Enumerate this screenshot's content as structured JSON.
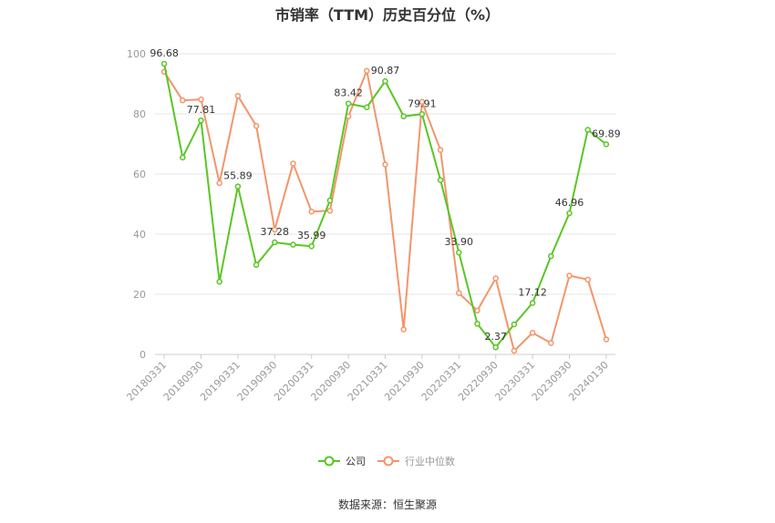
{
  "chart_data": {
    "type": "line",
    "title": "市销率（TTM）历史百分位（%）",
    "xlabel": "",
    "ylabel": "",
    "ylim": [
      0,
      100
    ],
    "yticks": [
      0,
      20,
      40,
      60,
      80,
      100
    ],
    "x": [
      "20180331",
      "20180630",
      "20180930",
      "20181231",
      "20190331",
      "20190630",
      "20190930",
      "20191231",
      "20200331",
      "20200630",
      "20200930",
      "20201231",
      "20210331",
      "20210630",
      "20210930",
      "20211231",
      "20220331",
      "20220630",
      "20220930",
      "20221231",
      "20230331",
      "20230630",
      "20230930",
      "20231231",
      "20240130"
    ],
    "xtick_labels": [
      "20180331",
      "20180930",
      "20190331",
      "20190930",
      "20200331",
      "20200930",
      "20210331",
      "20210930",
      "20220331",
      "20220930",
      "20230331",
      "20230930",
      "20240130"
    ],
    "series": [
      {
        "name": "公司",
        "color": "#5ac624",
        "values": [
          96.68,
          65.5,
          77.81,
          24.2,
          55.89,
          29.8,
          37.28,
          36.5,
          35.99,
          51.2,
          83.42,
          82.2,
          90.87,
          79.2,
          79.91,
          58.0,
          33.9,
          10.2,
          2.37,
          10.0,
          17.12,
          32.7,
          46.96,
          74.7,
          69.89
        ],
        "labels": {
          "0": "96.68",
          "2": "77.81",
          "4": "55.89",
          "6": "37.28",
          "8": "35.99",
          "10": "83.42",
          "12": "90.87",
          "14": "79.91",
          "16": "33.90",
          "18": "2.37",
          "20": "17.12",
          "22": "46.96",
          "24": "69.89"
        }
      },
      {
        "name": "行业中位数",
        "color": "#f4956b",
        "values": [
          94.0,
          84.5,
          84.8,
          57.0,
          86.0,
          76.0,
          41.5,
          63.5,
          47.5,
          47.8,
          79.2,
          94.3,
          63.2,
          8.3,
          84.0,
          68.0,
          20.4,
          14.6,
          25.3,
          1.2,
          7.2,
          3.8,
          26.2,
          24.9,
          5.0
        ]
      }
    ],
    "legend_position": "bottom",
    "grid": true
  },
  "source": "数据来源：恒生聚源"
}
